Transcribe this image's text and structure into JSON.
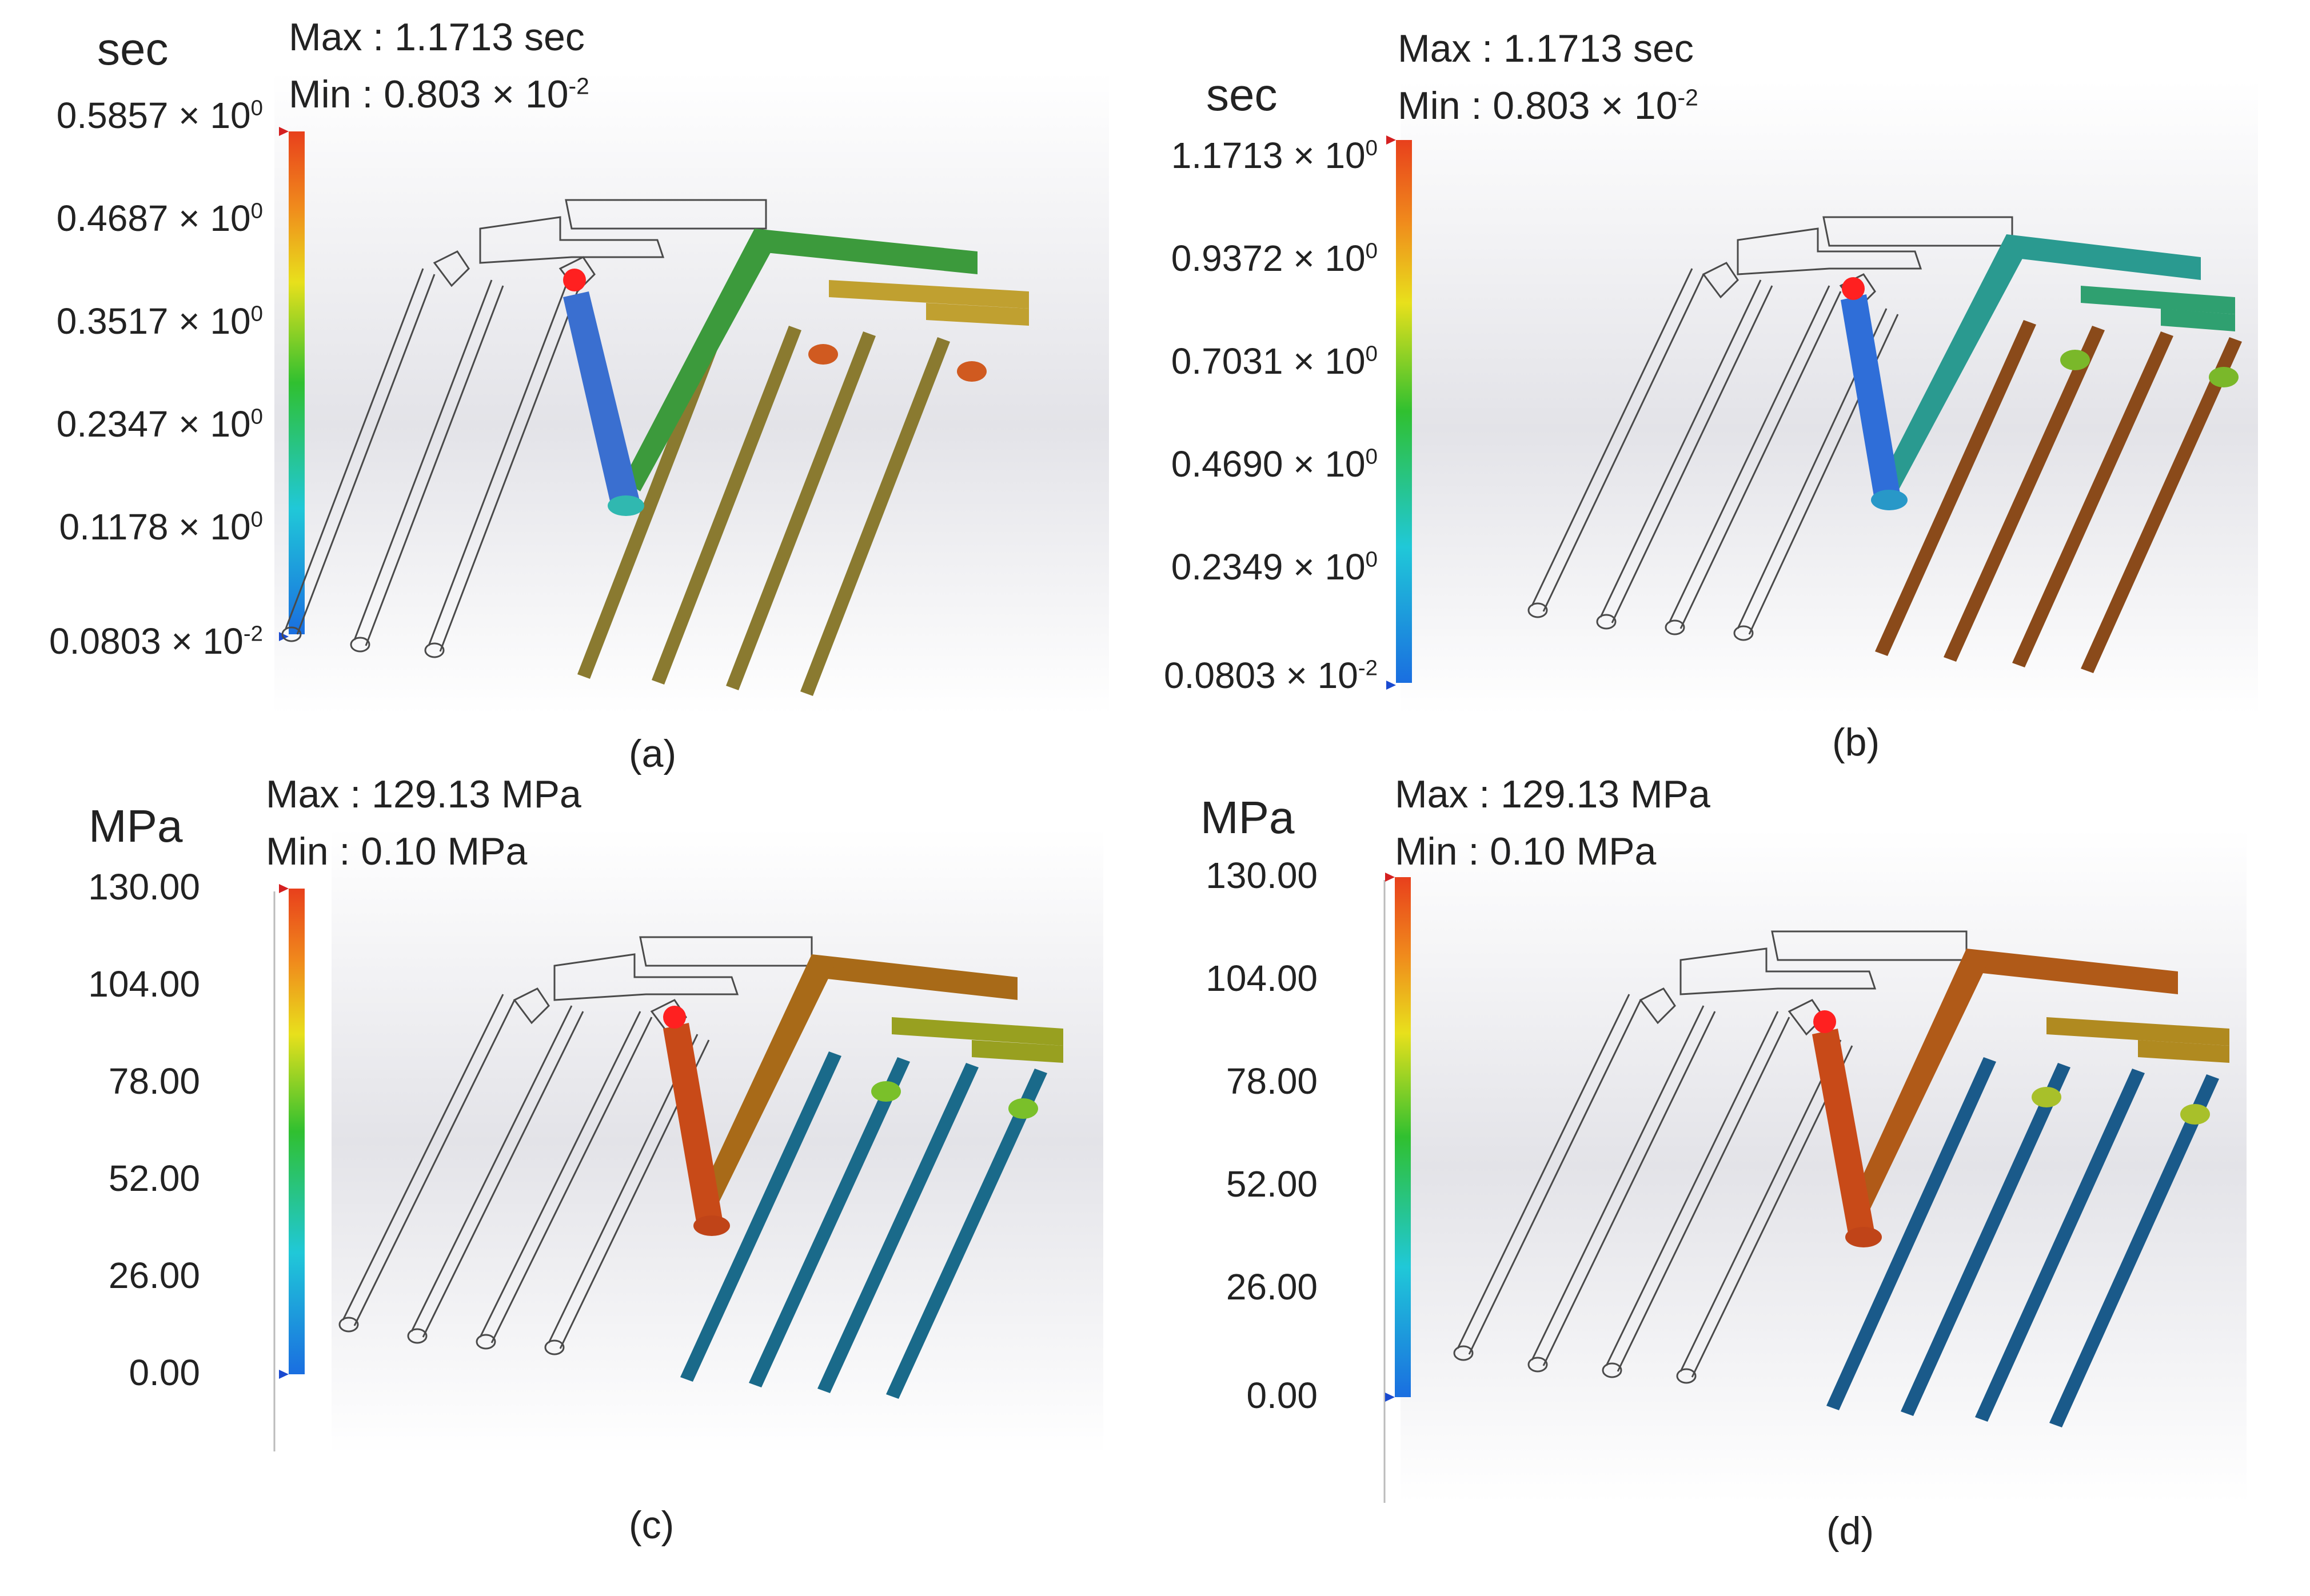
{
  "panels": [
    {
      "id": "a",
      "caption": "(a)",
      "unit": "sec",
      "max_label": "Max : 1.1713 sec",
      "min_label": "Min  : 0.803 × 10",
      "min_exp": "-2",
      "ticks": [
        {
          "base": "0.5857 × 10",
          "exp": "0"
        },
        {
          "base": "0.4687 × 10",
          "exp": "0"
        },
        {
          "base": "0.3517 × 10",
          "exp": "0"
        },
        {
          "base": "0.2347 × 10",
          "exp": "0"
        },
        {
          "base": "0.1178 × 10",
          "exp": "0"
        },
        {
          "base": "0.0803 × 10",
          "exp": "-2"
        }
      ],
      "part_colors": {
        "sprue": "#3a6fd0",
        "runner": "#3c9a3c",
        "branch": "#c0a030",
        "rod": "#8a7a30",
        "gate": "#d05a20"
      }
    },
    {
      "id": "b",
      "caption": "(b)",
      "unit": "sec",
      "max_label": "Max : 1.1713 sec",
      "min_label": "Min  : 0.803 × 10",
      "min_exp": "-2",
      "ticks": [
        {
          "base": "1.1713 × 10",
          "exp": "0"
        },
        {
          "base": "0.9372 × 10",
          "exp": "0"
        },
        {
          "base": "0.7031 × 10",
          "exp": "0"
        },
        {
          "base": "0.4690 × 10",
          "exp": "0"
        },
        {
          "base": "0.2349 × 10",
          "exp": "0"
        },
        {
          "base": "0.0803 × 10",
          "exp": "-2"
        }
      ],
      "part_colors": {
        "sprue": "#2f6ed8",
        "runner": "#2a9a90",
        "branch": "#2fa070",
        "rod": "#8a4a1a",
        "gate": "#7ab82a"
      }
    },
    {
      "id": "c",
      "caption": "(c)",
      "unit": "MPa",
      "max_label": "Max : 129.13 MPa",
      "min_label": "Min  : 0.10 MPa",
      "min_exp": "",
      "ticks": [
        {
          "base": "130.00",
          "exp": ""
        },
        {
          "base": "104.00",
          "exp": ""
        },
        {
          "base": "78.00",
          "exp": ""
        },
        {
          "base": "52.00",
          "exp": ""
        },
        {
          "base": "26.00",
          "exp": ""
        },
        {
          "base": "0.00",
          "exp": ""
        }
      ],
      "part_colors": {
        "sprue": "#c84a18",
        "runner": "#a86a18",
        "branch": "#98a020",
        "rod": "#1a6a8a",
        "gate": "#7ac02a"
      }
    },
    {
      "id": "d",
      "caption": "(d)",
      "unit": "MPa",
      "max_label": "Max : 129.13 MPa",
      "min_label": "Min  : 0.10 MPa",
      "min_exp": "",
      "ticks": [
        {
          "base": "130.00",
          "exp": ""
        },
        {
          "base": "104.00",
          "exp": ""
        },
        {
          "base": "78.00",
          "exp": ""
        },
        {
          "base": "52.00",
          "exp": ""
        },
        {
          "base": "26.00",
          "exp": ""
        },
        {
          "base": "0.00",
          "exp": ""
        }
      ],
      "part_colors": {
        "sprue": "#c84a18",
        "runner": "#b05a18",
        "branch": "#b08a20",
        "rod": "#1a5a8a",
        "gate": "#a8c02a"
      }
    }
  ],
  "colors": {
    "bar_top": "#e8401c",
    "bar_bottom": "#1a6ee0",
    "marker_max": "#d42020",
    "marker_min": "#1a4ad0",
    "red_inlet": "#ff2020",
    "background_grey": "#e6e6ea",
    "outline": "#4a4a4a"
  }
}
